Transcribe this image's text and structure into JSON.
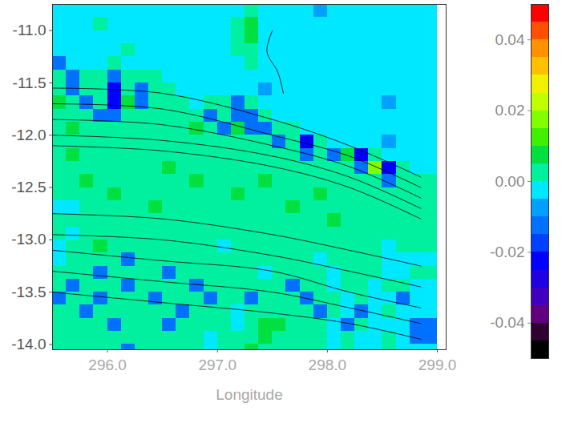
{
  "chart_data": {
    "type": "heatmap",
    "x_label": "Longitude",
    "xlim": [
      295.5,
      299.08
    ],
    "ylim": [
      -14.05,
      -10.75
    ],
    "xticks": [
      {
        "value": 296,
        "label": "296.0"
      },
      {
        "value": 297,
        "label": "297.0"
      },
      {
        "value": 298,
        "label": "298.0"
      },
      {
        "value": 299,
        "label": "299.0"
      }
    ],
    "yticks": [
      {
        "value": -11,
        "label": "-11.0"
      },
      -11.5,
      {
        "value": -12,
        "label": "-12.0"
      },
      -12.5,
      {
        "value": -13,
        "label": "-13.0"
      },
      -13.5,
      {
        "value": -14,
        "label": "-14.0"
      }
    ],
    "x_edges": [
      295.5,
      295.625,
      295.75,
      295.875,
      296,
      296.125,
      296.25,
      296.375,
      296.5,
      296.625,
      296.75,
      296.875,
      297,
      297.125,
      297.25,
      297.375,
      297.5,
      297.625,
      297.75,
      297.875,
      298,
      298.125,
      298.25,
      298.375,
      298.5,
      298.625,
      298.75,
      299.0
    ],
    "y_edges": [
      -10.75,
      -10.875,
      -11,
      -11.125,
      -11.25,
      -11.375,
      -11.5,
      -11.625,
      -11.75,
      -11.875,
      -12,
      -12.125,
      -12.25,
      -12.375,
      -12.5,
      -12.625,
      -12.75,
      -12.875,
      -13,
      -13.125,
      -13.25,
      -13.375,
      -13.5,
      -13.625,
      -13.75,
      -13.875,
      -14,
      -14.05
    ],
    "cells": [
      [
        -0.003,
        -0.003,
        -0.003,
        -0.003,
        -0.003,
        -0.003,
        -0.003,
        -0.003,
        -0.003,
        -0.003,
        -0.003,
        -0.003,
        -0.003,
        -0.003,
        0.002,
        -0.003,
        -0.003,
        -0.003,
        -0.003,
        -0.008,
        -0.003,
        -0.003,
        -0.003,
        -0.003,
        -0.003,
        -0.003,
        -0.003
      ],
      [
        -0.003,
        -0.003,
        -0.003,
        0.002,
        -0.003,
        -0.003,
        -0.003,
        -0.003,
        -0.003,
        -0.003,
        -0.003,
        -0.003,
        -0.003,
        0.002,
        0.007,
        -0.003,
        -0.003,
        -0.003,
        -0.003,
        -0.003,
        -0.003,
        -0.003,
        -0.003,
        -0.003,
        -0.003,
        -0.003,
        -0.003
      ],
      [
        -0.003,
        -0.003,
        -0.003,
        -0.003,
        -0.003,
        -0.003,
        -0.003,
        -0.003,
        -0.003,
        -0.003,
        -0.003,
        -0.003,
        -0.003,
        0.002,
        0.007,
        -0.003,
        -0.003,
        -0.003,
        -0.003,
        -0.003,
        -0.003,
        -0.003,
        -0.003,
        -0.003,
        -0.003,
        -0.003,
        -0.003
      ],
      [
        -0.003,
        -0.003,
        -0.003,
        -0.003,
        -0.003,
        0.002,
        -0.003,
        -0.003,
        -0.003,
        -0.003,
        -0.003,
        -0.003,
        -0.003,
        0.002,
        0.002,
        -0.003,
        -0.003,
        -0.003,
        -0.003,
        -0.003,
        -0.003,
        -0.003,
        -0.003,
        -0.003,
        -0.003,
        -0.003,
        -0.003
      ],
      [
        -0.015,
        -0.003,
        -0.003,
        -0.003,
        0.002,
        -0.003,
        -0.003,
        -0.003,
        -0.003,
        -0.003,
        -0.003,
        -0.003,
        -0.003,
        -0.003,
        0.002,
        -0.003,
        -0.003,
        -0.003,
        -0.003,
        -0.003,
        -0.003,
        -0.003,
        -0.003,
        -0.003,
        -0.003,
        -0.003,
        -0.003
      ],
      [
        0.002,
        -0.015,
        0.002,
        0.002,
        -0.015,
        0.002,
        0.002,
        0.002,
        -0.003,
        -0.003,
        -0.003,
        -0.003,
        -0.003,
        -0.003,
        -0.003,
        -0.003,
        -0.003,
        -0.003,
        -0.003,
        -0.003,
        -0.003,
        -0.003,
        -0.003,
        -0.003,
        -0.003,
        -0.003,
        -0.003
      ],
      [
        0.002,
        -0.015,
        0.002,
        0.002,
        -0.025,
        0.002,
        -0.015,
        0.002,
        0.002,
        -0.003,
        -0.003,
        -0.003,
        -0.003,
        -0.003,
        -0.003,
        -0.008,
        -0.003,
        -0.003,
        -0.003,
        -0.003,
        -0.003,
        -0.003,
        -0.003,
        -0.003,
        -0.003,
        -0.003,
        -0.003
      ],
      [
        0.007,
        0.002,
        -0.015,
        0.002,
        -0.025,
        0.007,
        -0.015,
        0.002,
        0.002,
        0.002,
        -0.003,
        0.002,
        0.002,
        -0.015,
        0.002,
        -0.003,
        -0.003,
        -0.003,
        -0.003,
        -0.003,
        -0.003,
        -0.003,
        -0.003,
        -0.003,
        -0.008,
        -0.003,
        -0.003
      ],
      [
        0.002,
        0.002,
        0.002,
        -0.015,
        -0.015,
        0.002,
        0.002,
        0.002,
        0.002,
        0.002,
        0.002,
        -0.015,
        0.002,
        -0.015,
        -0.015,
        0.002,
        -0.003,
        -0.003,
        -0.003,
        -0.003,
        -0.003,
        -0.003,
        -0.003,
        -0.003,
        -0.003,
        -0.003,
        -0.003
      ],
      [
        0.002,
        0.007,
        0.002,
        0.002,
        0.002,
        0.002,
        0.002,
        0.002,
        0.002,
        0.002,
        0.007,
        0.002,
        -0.015,
        0.007,
        -0.015,
        -0.015,
        0.002,
        0.002,
        -0.003,
        -0.003,
        -0.003,
        -0.003,
        -0.003,
        -0.003,
        -0.003,
        -0.003,
        -0.003
      ],
      [
        0.002,
        0.002,
        0.002,
        0.002,
        0.002,
        0.002,
        0.002,
        0.002,
        0.002,
        0.002,
        0.002,
        0.002,
        0.002,
        0.002,
        0.002,
        0.002,
        -0.015,
        0.002,
        -0.025,
        0.002,
        -0.003,
        -0.003,
        -0.003,
        -0.003,
        -0.008,
        -0.003,
        -0.003
      ],
      [
        0.002,
        0.007,
        0.002,
        0.002,
        0.002,
        0.002,
        0.002,
        0.002,
        0.002,
        0.002,
        0.002,
        0.002,
        0.002,
        0.002,
        0.002,
        0.002,
        0.002,
        0.002,
        -0.015,
        0.002,
        -0.015,
        0.007,
        -0.025,
        0.002,
        -0.003,
        -0.003,
        -0.003
      ],
      [
        0.002,
        0.002,
        0.002,
        0.002,
        0.002,
        0.002,
        0.002,
        0.002,
        0.007,
        0.002,
        0.002,
        0.002,
        0.002,
        0.002,
        0.002,
        0.002,
        0.002,
        0.002,
        0.002,
        0.002,
        0.002,
        0.002,
        -0.015,
        0.017,
        -0.025,
        0.002,
        -0.003
      ],
      [
        0.002,
        0.002,
        0.007,
        0.002,
        0.002,
        0.002,
        0.002,
        0.002,
        0.002,
        0.002,
        0.007,
        0.002,
        0.002,
        0.002,
        0.002,
        0.007,
        0.002,
        0.002,
        0.002,
        0.002,
        0.002,
        0.002,
        0.002,
        0.002,
        -0.015,
        0.002,
        0.002
      ],
      [
        0.002,
        0.002,
        0.002,
        0.002,
        0.007,
        0.002,
        0.002,
        0.002,
        0.002,
        0.002,
        0.002,
        0.002,
        0.002,
        0.007,
        0.002,
        0.002,
        0.002,
        0.002,
        0.002,
        0.007,
        0.002,
        0.002,
        0.002,
        0.002,
        0.002,
        0.002,
        0.002
      ],
      [
        -0.003,
        -0.003,
        0.002,
        0.002,
        0.002,
        0.002,
        0.002,
        0.007,
        0.002,
        0.002,
        0.002,
        0.002,
        0.002,
        0.002,
        0.002,
        0.002,
        0.002,
        0.007,
        0.002,
        0.002,
        0.002,
        0.002,
        0.002,
        0.002,
        0.002,
        0.002,
        0.002
      ],
      [
        0.002,
        0.002,
        0.002,
        0.002,
        0.002,
        0.002,
        0.002,
        0.002,
        0.002,
        0.002,
        0.002,
        0.002,
        0.002,
        0.002,
        0.002,
        0.002,
        0.002,
        0.002,
        0.002,
        0.002,
        0.007,
        0.002,
        0.002,
        0.002,
        0.002,
        0.002,
        0.002
      ],
      [
        0.002,
        -0.003,
        0.002,
        0.002,
        0.002,
        0.002,
        0.002,
        0.002,
        0.002,
        0.002,
        0.002,
        0.002,
        0.002,
        0.002,
        0.002,
        0.002,
        0.002,
        0.002,
        0.002,
        0.002,
        0.002,
        0.002,
        0.002,
        0.002,
        0.002,
        0.002,
        0.002
      ],
      [
        -0.003,
        0.002,
        0.002,
        0.007,
        0.002,
        0.002,
        0.002,
        0.002,
        0.002,
        0.002,
        0.002,
        0.002,
        -0.003,
        0.002,
        0.002,
        0.002,
        0.002,
        0.002,
        0.002,
        0.002,
        0.002,
        0.002,
        0.002,
        0.002,
        -0.003,
        0.002,
        0.002
      ],
      [
        -0.003,
        0.002,
        0.002,
        0.002,
        0.002,
        -0.015,
        0.002,
        0.002,
        0.002,
        0.002,
        0.002,
        0.002,
        0.002,
        0.002,
        0.002,
        0.002,
        0.002,
        0.002,
        0.002,
        -0.003,
        0.002,
        0.002,
        0.002,
        0.002,
        -0.003,
        -0.003,
        -0.003
      ],
      [
        0.002,
        0.002,
        0.002,
        -0.015,
        0.002,
        0.002,
        0.002,
        0.002,
        -0.015,
        0.002,
        0.002,
        0.002,
        0.002,
        0.002,
        0.002,
        -0.003,
        0.002,
        0.002,
        0.002,
        0.002,
        -0.003,
        0.002,
        0.002,
        0.002,
        -0.003,
        -0.003,
        0.002
      ],
      [
        0.002,
        -0.015,
        0.002,
        0.002,
        0.002,
        -0.015,
        0.002,
        0.002,
        0.002,
        0.002,
        -0.015,
        0.002,
        0.002,
        0.002,
        0.002,
        0.002,
        0.002,
        -0.015,
        0.002,
        0.002,
        -0.003,
        0.002,
        0.002,
        -0.003,
        0.002,
        0.002,
        -0.003
      ],
      [
        -0.015,
        0.002,
        0.002,
        -0.015,
        0.002,
        0.002,
        0.002,
        -0.015,
        0.002,
        0.002,
        0.002,
        -0.015,
        0.002,
        0.002,
        -0.015,
        0.002,
        0.002,
        0.002,
        -0.015,
        0.002,
        0.002,
        -0.003,
        0.002,
        -0.003,
        -0.003,
        -0.015,
        -0.003
      ],
      [
        0.002,
        0.002,
        -0.015,
        0.002,
        0.002,
        0.002,
        0.002,
        0.002,
        0.002,
        -0.015,
        0.002,
        0.002,
        0.002,
        -0.003,
        0.002,
        0.002,
        0.002,
        0.002,
        0.002,
        -0.015,
        0.002,
        -0.003,
        -0.015,
        -0.003,
        0.002,
        -0.003,
        -0.003
      ],
      [
        0.002,
        0.002,
        0.002,
        0.002,
        -0.015,
        0.002,
        0.002,
        0.002,
        -0.015,
        0.002,
        0.002,
        0.002,
        0.002,
        -0.003,
        0.002,
        0.007,
        0.007,
        0.002,
        0.002,
        0.002,
        -0.003,
        -0.015,
        0.002,
        -0.003,
        -0.003,
        -0.003,
        -0.015
      ],
      [
        0.002,
        0.002,
        0.002,
        0.002,
        0.002,
        0.002,
        0.002,
        0.002,
        0.002,
        0.002,
        0.002,
        -0.003,
        0.002,
        0.002,
        0.002,
        0.007,
        0.002,
        0.002,
        0.002,
        0.002,
        -0.003,
        0.002,
        -0.003,
        -0.003,
        0.002,
        -0.003,
        -0.015
      ],
      [
        0.002,
        0.002,
        0.002,
        0.002,
        0.002,
        -0.015,
        0.002,
        0.002,
        0.002,
        0.002,
        0.002,
        -0.003,
        0.002,
        0.002,
        0.007,
        0.002,
        0.002,
        0.002,
        0.002,
        0.002,
        -0.003,
        0.002,
        -0.003,
        -0.003,
        0.002,
        -0.003,
        -0.003
      ]
    ],
    "colorbar": {
      "range": [
        -0.05,
        0.05
      ],
      "ticks": [
        0.04,
        0.02,
        {
          "value": 0,
          "label": "0.00"
        },
        -0.02,
        -0.04
      ],
      "colors": [
        "#000000",
        "#300030",
        "#600080",
        "#4000c0",
        "#2000e0",
        "#0000ff",
        "#0040ff",
        "#0070ff",
        "#00a0ff",
        "#00e8ff",
        "#00f0a0",
        "#00e040",
        "#40f000",
        "#80ff00",
        "#c0ff00",
        "#f0f000",
        "#ffc000",
        "#ff9000",
        "#ff5000",
        "#ff0000"
      ]
    },
    "contours": [
      {
        "lon": [
          295.5,
          296.5,
          297.5,
          298.2,
          298.85
        ],
        "lat": [
          -11.55,
          -11.6,
          -11.85,
          -12.1,
          -12.4
        ]
      },
      {
        "lon": [
          295.5,
          296.5,
          297.5,
          298.2,
          298.85
        ],
        "lat": [
          -11.7,
          -11.75,
          -12.0,
          -12.2,
          -12.5
        ]
      },
      {
        "lon": [
          295.5,
          296.5,
          297.5,
          298.2,
          298.85
        ],
        "lat": [
          -11.85,
          -11.9,
          -12.1,
          -12.3,
          -12.6
        ]
      },
      {
        "lon": [
          295.5,
          296.5,
          297.5,
          298.2,
          298.85
        ],
        "lat": [
          -12.0,
          -12.05,
          -12.2,
          -12.4,
          -12.7
        ]
      },
      {
        "lon": [
          295.5,
          296.5,
          297.5,
          298.2,
          298.85
        ],
        "lat": [
          -12.1,
          -12.15,
          -12.3,
          -12.5,
          -12.8
        ]
      },
      {
        "lon": [
          295.5,
          296.5,
          297.5,
          298.2,
          298.85
        ],
        "lat": [
          -12.75,
          -12.8,
          -12.95,
          -13.1,
          -13.25
        ]
      },
      {
        "lon": [
          295.5,
          296.5,
          297.5,
          298.2,
          298.85
        ],
        "lat": [
          -12.95,
          -13.0,
          -13.15,
          -13.3,
          -13.45
        ]
      },
      {
        "lon": [
          295.5,
          296.5,
          297.5,
          298.2,
          298.85
        ],
        "lat": [
          -13.1,
          -13.2,
          -13.3,
          -13.5,
          -13.65
        ]
      },
      {
        "lon": [
          295.5,
          296.5,
          297.5,
          298.2,
          298.85
        ],
        "lat": [
          -13.3,
          -13.4,
          -13.5,
          -13.65,
          -13.8
        ]
      },
      {
        "lon": [
          295.5,
          296.5,
          297.5,
          298.2,
          298.85
        ],
        "lat": [
          -13.5,
          -13.6,
          -13.7,
          -13.8,
          -13.95
        ]
      },
      {
        "lon": [
          297.5,
          297.45,
          297.55,
          297.6
        ],
        "lat": [
          -11.0,
          -11.2,
          -11.4,
          -11.6
        ]
      }
    ]
  }
}
